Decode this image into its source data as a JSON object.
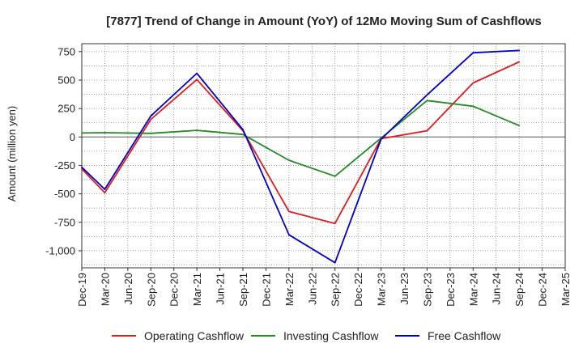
{
  "chart_data": {
    "type": "line",
    "title": "[7877]  Trend of Change in Amount (YoY) of 12Mo Moving Sum of Cashflows",
    "xlabel": "",
    "ylabel": "Amount (million yen)",
    "ylim": [
      -1150,
      820
    ],
    "yticks": [
      750,
      500,
      250,
      0,
      -250,
      -500,
      -750,
      -1000
    ],
    "ytick_labels": [
      "750",
      "500",
      "250",
      "0",
      "-250",
      "-500",
      "-750",
      "-1,000"
    ],
    "grid": true,
    "legend_position": "bottom",
    "categories": [
      "Dec-19",
      "Mar-20",
      "Jun-20",
      "Sep-20",
      "Dec-20",
      "Mar-21",
      "Jun-21",
      "Sep-21",
      "Dec-21",
      "Mar-22",
      "Jun-22",
      "Sep-22",
      "Dec-22",
      "Mar-23",
      "Jun-23",
      "Sep-23",
      "Dec-23",
      "Mar-24",
      "Jun-24",
      "Sep-24",
      "Dec-24",
      "Mar-25"
    ],
    "series": [
      {
        "name": "Operating Cashflow",
        "color": "#e31a1c",
        "values": [
          -280,
          -490,
          null,
          155,
          null,
          505,
          null,
          55,
          null,
          -655,
          null,
          -760,
          null,
          -15,
          null,
          55,
          null,
          475,
          null,
          660,
          null,
          null
        ]
      },
      {
        "name": "Investing Cashflow",
        "color": "#228b22",
        "values": [
          35,
          38,
          null,
          32,
          null,
          58,
          null,
          22,
          null,
          -205,
          null,
          -345,
          null,
          -10,
          null,
          320,
          null,
          270,
          null,
          100,
          null,
          null
        ]
      },
      {
        "name": "Free Cashflow",
        "color": "#0000cc",
        "values": [
          -265,
          -460,
          null,
          185,
          null,
          560,
          null,
          65,
          null,
          -860,
          null,
          -1105,
          null,
          -20,
          null,
          370,
          null,
          740,
          null,
          760,
          null,
          null
        ]
      }
    ]
  }
}
